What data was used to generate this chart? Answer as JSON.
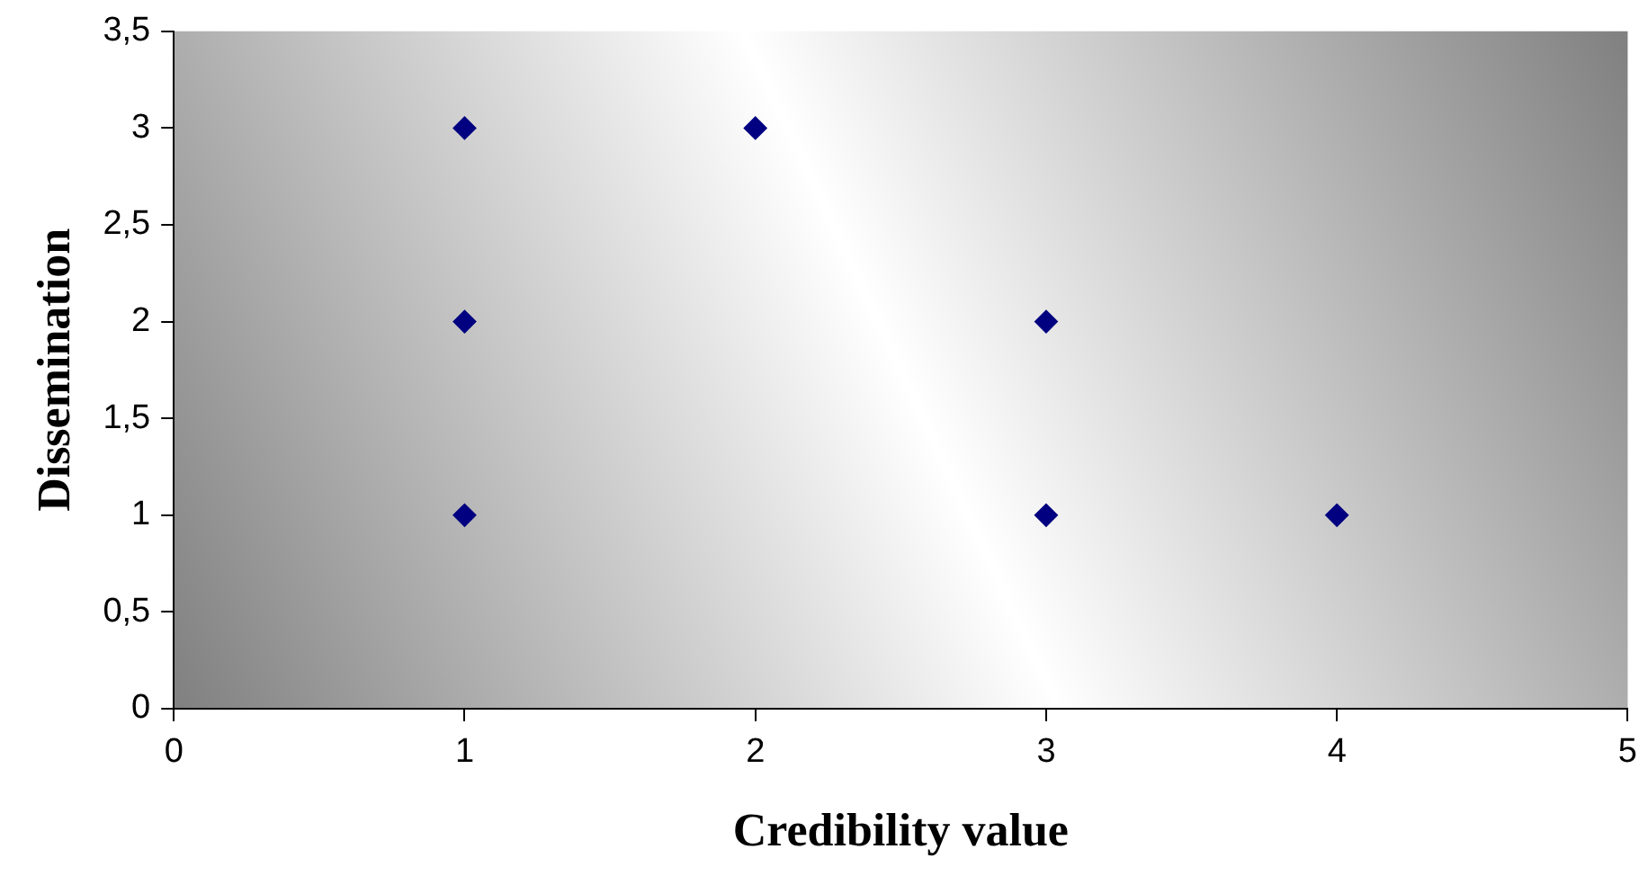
{
  "chart_data": {
    "type": "scatter",
    "xlabel": "Credibility value",
    "ylabel": "Dissemination",
    "x": [
      1,
      2,
      1,
      3,
      1,
      3,
      4
    ],
    "series": [
      {
        "color": "#000080",
        "values": [
          3,
          3,
          2,
          2,
          1,
          1,
          1
        ]
      }
    ],
    "xlim": [
      0,
      5
    ],
    "xticks": [
      0,
      1,
      2,
      3,
      4,
      5
    ],
    "ylim": [
      0,
      3.5
    ],
    "yticks": [
      0,
      {
        "value": 0.5,
        "label": "0,5"
      },
      1,
      {
        "value": 1.5,
        "label": "1,5"
      },
      2,
      {
        "value": 2.5,
        "label": "2,5"
      },
      3,
      {
        "value": 3.5,
        "label": "3,5"
      }
    ],
    "grid": false,
    "legend": false,
    "marker": "diamond"
  }
}
